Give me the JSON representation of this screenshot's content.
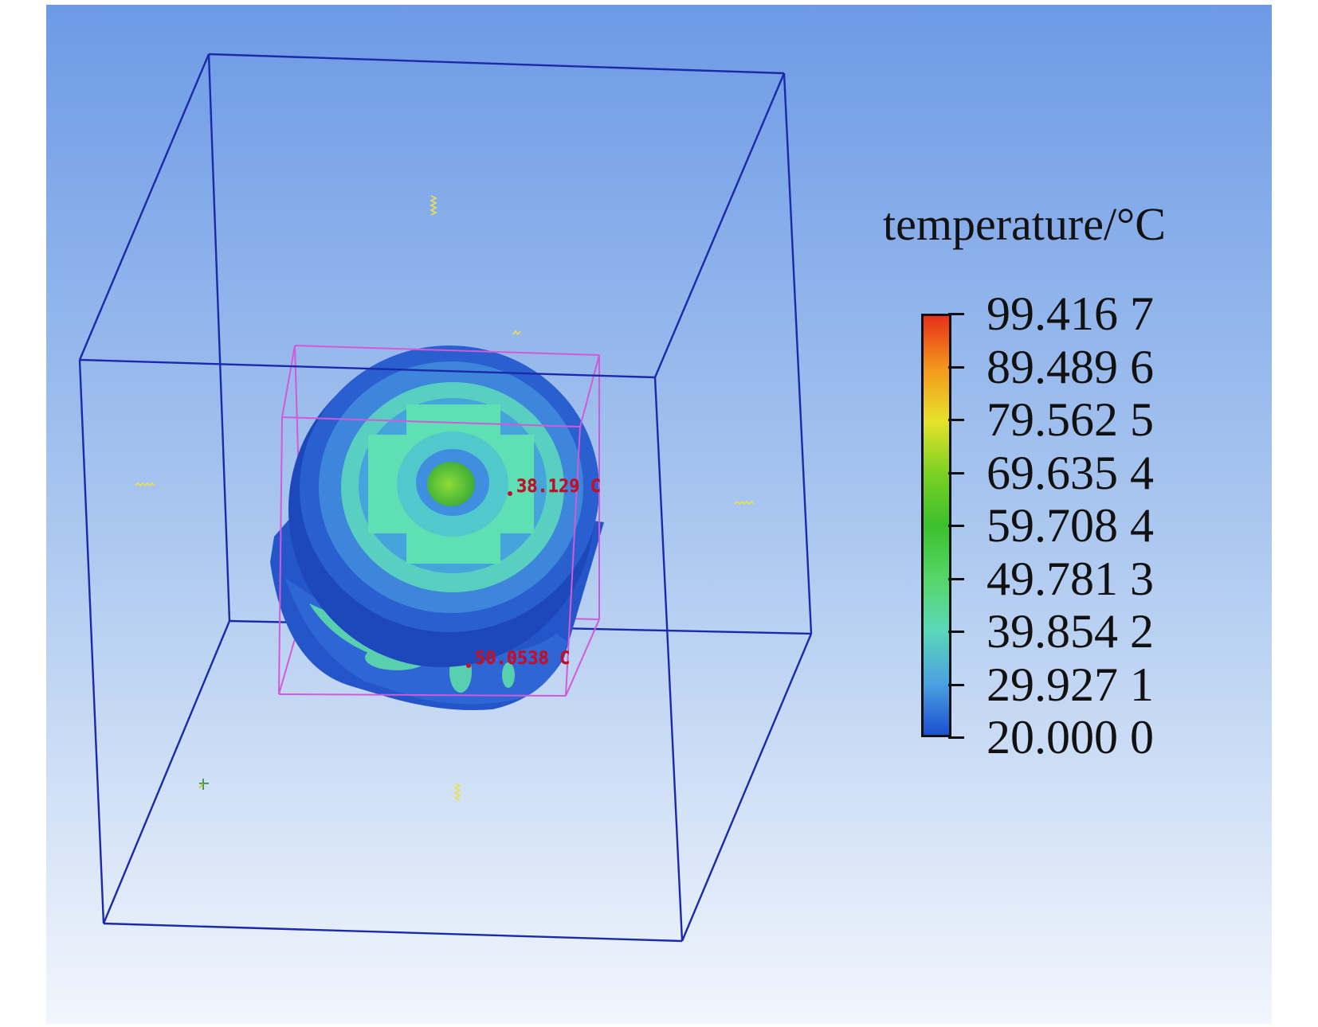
{
  "legend": {
    "title": "temperature/°C",
    "values": [
      "99.416 7",
      "89.489 6",
      "79.562 5",
      "69.635 4",
      "59.708 4",
      "49.781 3",
      "39.854 2",
      "29.927 1",
      "20.000 0"
    ],
    "colors": [
      "#e8301a",
      "#f39a1c",
      "#e6e22a",
      "#78d024",
      "#3cc02c",
      "#56d66a",
      "#5ad8b8",
      "#4aa0e0",
      "#1c4fd0"
    ]
  },
  "probes": [
    {
      "label": "38.129 C"
    },
    {
      "label": "50.0538 C"
    }
  ],
  "colors": {
    "background_top": "#6d9ae6",
    "background_bottom": "#f2f6fc",
    "domain_box": "#1a2aa8",
    "part_box": "#d25ad8",
    "probe": "#c0102a"
  }
}
